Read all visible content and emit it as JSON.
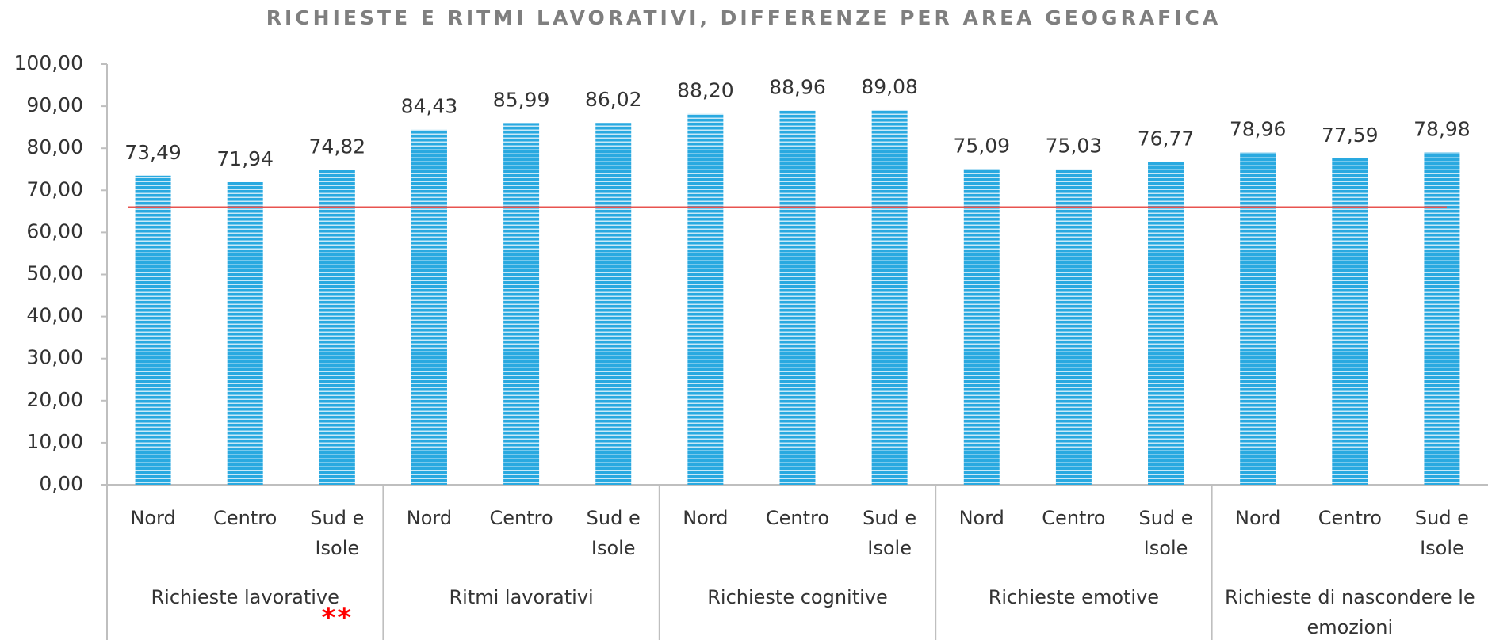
{
  "chart_data": {
    "type": "bar",
    "title": "RICHIESTE E RITMI LAVORATIVI, DIFFERENZE PER AREA GEOGRAFICA",
    "groups": [
      {
        "name": "Richieste lavorative",
        "categories": [
          "Nord",
          "Centro",
          "Sud e Isole"
        ]
      },
      {
        "name": "Ritmi lavorativi",
        "categories": [
          "Nord",
          "Centro",
          "Sud e Isole"
        ]
      },
      {
        "name": "Richieste cognitive",
        "categories": [
          "Nord",
          "Centro",
          "Sud e Isole"
        ]
      },
      {
        "name": "Richieste emotive",
        "categories": [
          "Nord",
          "Centro",
          "Sud e Isole"
        ]
      },
      {
        "name": "Richieste di nascondere le emozioni",
        "categories": [
          "Nord",
          "Centro",
          "Sud e Isole"
        ]
      }
    ],
    "series": [
      {
        "color": "#29a9e0",
        "values": [
          73.49,
          71.94,
          74.82,
          84.43,
          85.99,
          86.02,
          88.2,
          88.96,
          89.08,
          75.09,
          75.03,
          76.77,
          78.96,
          77.59,
          78.98
        ],
        "value_labels": [
          "73,49",
          "71,94",
          "74,82",
          "84,43",
          "85,99",
          "86,02",
          "88,20",
          "88,96",
          "89,08",
          "75,09",
          "75,03",
          "76,77",
          "78,96",
          "77,59",
          "78,98"
        ]
      }
    ],
    "reference_line": {
      "value": 66,
      "color": "#e8534f"
    },
    "annotation": "**",
    "ylim": [
      0,
      100
    ],
    "yticks": [
      {
        "value": 0,
        "label": "0,00"
      },
      {
        "value": 10,
        "label": "10,00"
      },
      {
        "value": 20,
        "label": "20,00"
      },
      {
        "value": 30,
        "label": "30,00"
      },
      {
        "value": 40,
        "label": "40,00"
      },
      {
        "value": 50,
        "label": "50,00"
      },
      {
        "value": 60,
        "label": "60,00"
      },
      {
        "value": 70,
        "label": "70,00"
      },
      {
        "value": 80,
        "label": "80,00"
      },
      {
        "value": 90,
        "label": "90,00"
      },
      {
        "value": 100,
        "label": "100,00"
      }
    ]
  }
}
